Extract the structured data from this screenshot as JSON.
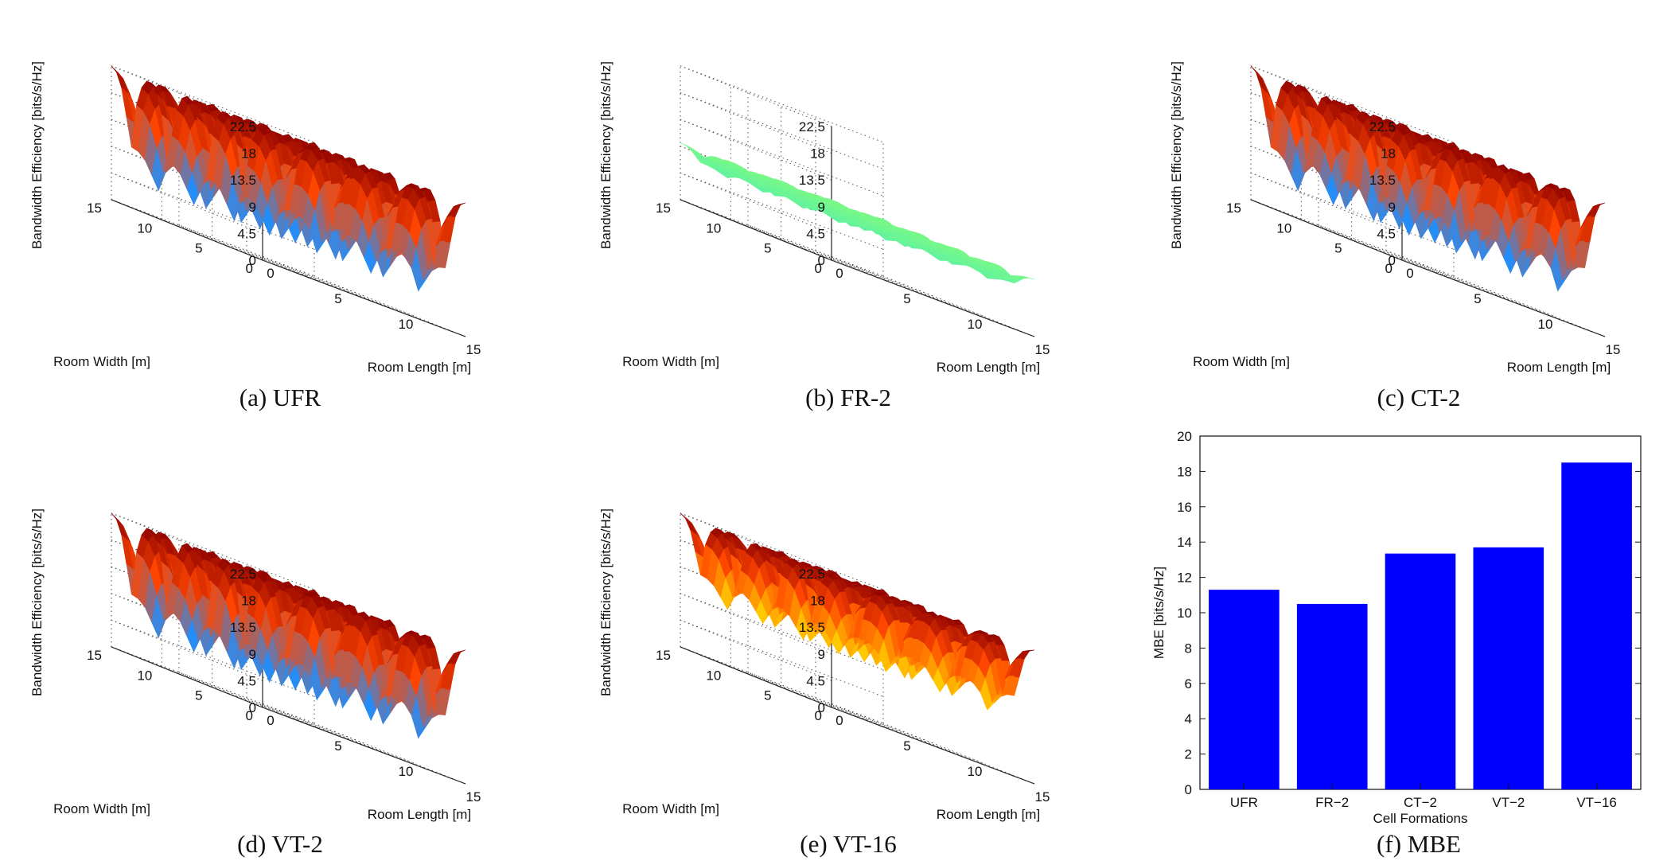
{
  "panels": [
    {
      "caption": "(a) UFR",
      "scheme": "UFR"
    },
    {
      "caption": "(b) FR-2",
      "scheme": "FR-2"
    },
    {
      "caption": "(c) CT-2",
      "scheme": "CT-2"
    },
    {
      "caption": "(d) VT-2",
      "scheme": "VT-2"
    },
    {
      "caption": "(e) VT-16",
      "scheme": "VT-16"
    },
    {
      "caption": "(f) MBE",
      "scheme": "MBE"
    }
  ],
  "surface_axes": {
    "zlabel": "Bandwidth Efficiency [bits/s/Hz]",
    "xlabel": "Room Length [m]",
    "ylabel": "Room Width [m]",
    "zticks": [
      "0",
      "4.5",
      "9",
      "13.5",
      "18",
      "22.5"
    ],
    "xticks": [
      "0",
      "5",
      "10",
      "15"
    ],
    "yticks": [
      "0",
      "5",
      "10",
      "15"
    ]
  },
  "colors": {
    "bar": "#0000ff",
    "surface_high": "#8b0000",
    "surface_mid": "#ff4500",
    "surface_low": "#1e90ff",
    "fr2_surface": "#40ffd0",
    "vt16_fill": "#ffd700"
  },
  "chart_data": [
    {
      "type": "heatmap",
      "title": "(a) UFR",
      "xlabel": "Room Length [m]",
      "ylabel": "Room Width [m]",
      "zlabel": "Bandwidth Efficiency [bits/s/Hz]",
      "xlim": [
        0,
        15
      ],
      "ylim": [
        0,
        15
      ],
      "zlim": [
        0,
        22.5
      ],
      "peak": 22.5,
      "edge_dip": 0
    },
    {
      "type": "heatmap",
      "title": "(b) FR-2",
      "xlabel": "Room Length [m]",
      "ylabel": "Room Width [m]",
      "zlabel": "Bandwidth Efficiency [bits/s/Hz]",
      "xlim": [
        0,
        15
      ],
      "ylim": [
        0,
        15
      ],
      "zlim": [
        0,
        22.5
      ],
      "peak": 12,
      "edge_dip": 6
    },
    {
      "type": "heatmap",
      "title": "(c) CT-2",
      "xlabel": "Room Length [m]",
      "ylabel": "Room Width [m]",
      "zlabel": "Bandwidth Efficiency [bits/s/Hz]",
      "xlim": [
        0,
        15
      ],
      "ylim": [
        0,
        15
      ],
      "zlim": [
        0,
        22.5
      ],
      "peak": 22.5,
      "edge_dip": 0
    },
    {
      "type": "heatmap",
      "title": "(d) VT-2",
      "xlabel": "Room Length [m]",
      "ylabel": "Room Width [m]",
      "zlabel": "Bandwidth Efficiency [bits/s/Hz]",
      "xlim": [
        0,
        15
      ],
      "ylim": [
        0,
        15
      ],
      "zlim": [
        0,
        22.5
      ],
      "peak": 22.5,
      "edge_dip": 0
    },
    {
      "type": "heatmap",
      "title": "(e) VT-16",
      "xlabel": "Room Length [m]",
      "ylabel": "Room Width [m]",
      "zlabel": "Bandwidth Efficiency [bits/s/Hz]",
      "xlim": [
        0,
        15
      ],
      "ylim": [
        0,
        15
      ],
      "zlim": [
        0,
        22.5
      ],
      "peak": 22.5,
      "edge_dip": 6
    },
    {
      "type": "bar",
      "title": "(f) MBE",
      "categories": [
        "UFR",
        "FR−2",
        "CT−2",
        "VT−2",
        "VT−16"
      ],
      "values": [
        11.3,
        10.5,
        13.35,
        13.7,
        18.5
      ],
      "xlabel": "Cell Formations",
      "ylabel": "MBE [bits/s/Hz]",
      "ylim": [
        0,
        20
      ],
      "yticks": [
        "0",
        "2",
        "4",
        "6",
        "8",
        "10",
        "12",
        "14",
        "16",
        "18",
        "20"
      ]
    }
  ]
}
